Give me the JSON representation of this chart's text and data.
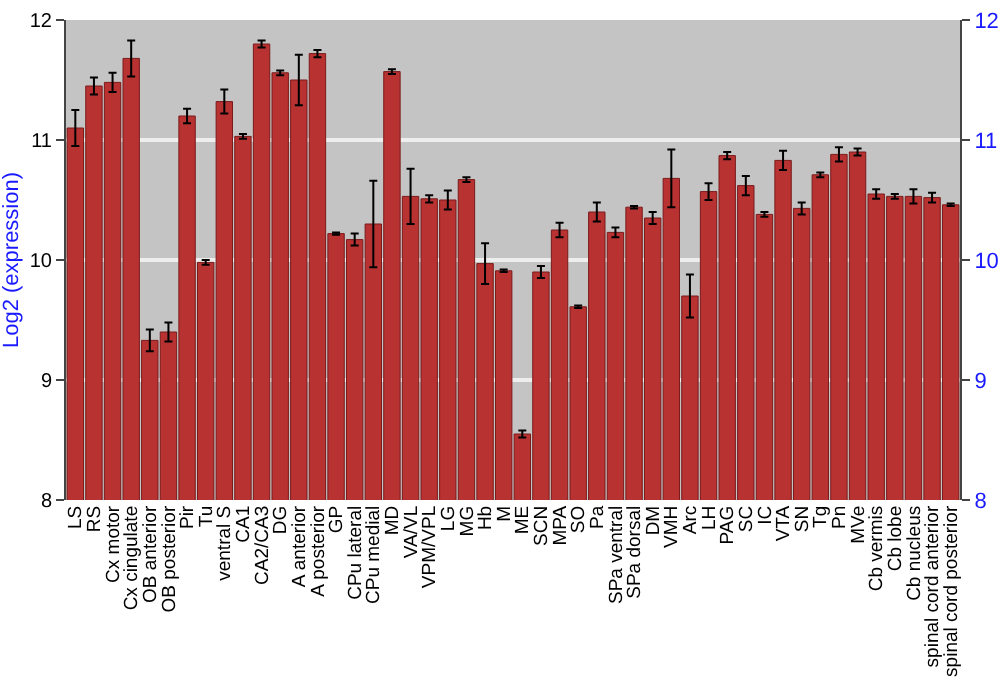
{
  "chart_data": {
    "type": "bar",
    "ylabel": "Log2 (expression)",
    "categories": [
      "LS",
      "RS",
      "Cx motor",
      "Cx cingulate",
      "OB anterior",
      "OB posterior",
      "Pir",
      "Tu",
      "ventral S",
      "CA1",
      "CA2/CA3",
      "DG",
      "A anterior",
      "A posterior",
      "GP",
      "CPu lateral",
      "CPu medial",
      "MD",
      "VA/VL",
      "VPM/VPL",
      "LG",
      "MG",
      "Hb",
      "M",
      "ME",
      "SCN",
      "MPA",
      "SO",
      "Pa",
      "SPa ventral",
      "SPa dorsal",
      "DM",
      "VMH",
      "Arc",
      "LH",
      "PAG",
      "SC",
      "IC",
      "VTA",
      "SN",
      "Tg",
      "Pn",
      "MVe",
      "Cb vermis",
      "Cb lobe",
      "Cb nucleus",
      "spinal cord anterior",
      "spinal cord posterior"
    ],
    "values": [
      11.1,
      11.45,
      11.48,
      11.68,
      9.33,
      9.4,
      11.2,
      9.98,
      11.32,
      11.03,
      11.8,
      11.56,
      11.5,
      11.72,
      10.22,
      10.17,
      10.3,
      11.57,
      10.53,
      10.51,
      10.5,
      10.67,
      9.97,
      9.91,
      8.55,
      9.9,
      10.25,
      9.61,
      10.4,
      10.23,
      10.44,
      10.35,
      10.68,
      9.7,
      10.57,
      10.87,
      10.62,
      10.38,
      10.83,
      10.43,
      10.71,
      10.88,
      10.9,
      10.55,
      10.53,
      10.53,
      10.52,
      10.46
    ],
    "errors": [
      0.15,
      0.07,
      0.08,
      0.15,
      0.09,
      0.08,
      0.06,
      0.02,
      0.1,
      0.02,
      0.03,
      0.02,
      0.21,
      0.03,
      0.01,
      0.05,
      0.36,
      0.02,
      0.23,
      0.03,
      0.08,
      0.02,
      0.17,
      0.01,
      0.03,
      0.05,
      0.06,
      0.01,
      0.08,
      0.04,
      0.01,
      0.05,
      0.24,
      0.18,
      0.07,
      0.03,
      0.08,
      0.02,
      0.08,
      0.05,
      0.02,
      0.06,
      0.03,
      0.04,
      0.02,
      0.06,
      0.04,
      0.01
    ],
    "color": "#b83232",
    "ylim": [
      8,
      12
    ],
    "yticks": [
      8,
      9,
      10,
      11,
      12
    ],
    "y2lim": [
      8,
      12
    ],
    "y2ticks": [
      8,
      9,
      10,
      11,
      12
    ],
    "grid": "y"
  }
}
